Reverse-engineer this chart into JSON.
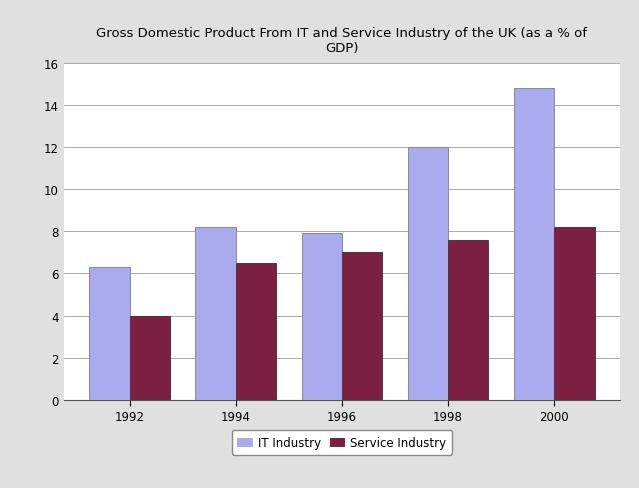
{
  "title": "Gross Domestic Product From IT and Service Industry of the UK (as a % of\nGDP)",
  "years": [
    "1992",
    "1994",
    "1996",
    "1998",
    "2000"
  ],
  "it_industry": [
    6.3,
    8.2,
    7.9,
    12.0,
    14.8
  ],
  "service_industry": [
    4.0,
    6.5,
    7.0,
    7.6,
    8.2
  ],
  "it_color": "#aaaaee",
  "service_color": "#7b2040",
  "ylim": [
    0,
    16
  ],
  "yticks": [
    0,
    2,
    4,
    6,
    8,
    10,
    12,
    14,
    16
  ],
  "legend_it": "IT Industry",
  "legend_service": "Service Industry",
  "bar_width": 0.38,
  "background_color": "#ffffff",
  "outer_background": "#e0e0e0",
  "grid_color": "#aaaaaa",
  "title_fontsize": 9.5,
  "tick_fontsize": 8.5,
  "legend_fontsize": 8.5
}
